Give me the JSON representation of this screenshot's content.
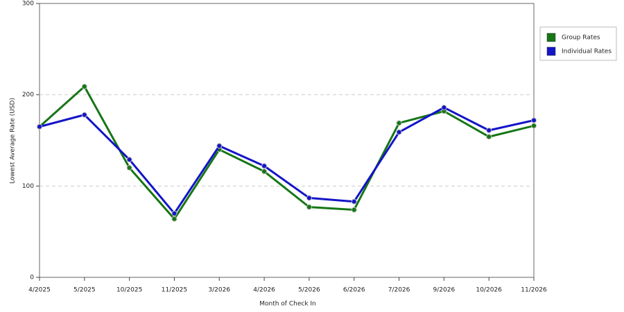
{
  "chart_data": {
    "type": "line",
    "x_label": "Month of Check In",
    "y_label": "Lowest Average Rate (USD)",
    "categories": [
      "4/2025",
      "5/2025",
      "10/2025",
      "11/2025",
      "3/2026",
      "4/2026",
      "5/2026",
      "6/2026",
      "7/2026",
      "9/2026",
      "10/2026",
      "11/2026"
    ],
    "series": [
      {
        "name": "Group Rates",
        "color": "#157615",
        "values": [
          165,
          209,
          120,
          64,
          140,
          116,
          77,
          74,
          169,
          182,
          154,
          166
        ]
      },
      {
        "name": "Individual Rates",
        "color": "#1414c8",
        "values": [
          165,
          178,
          129,
          70,
          144,
          122,
          87,
          83,
          159,
          186,
          161,
          172
        ]
      }
    ],
    "ylim": [
      0,
      300
    ],
    "yticks": [
      0,
      100,
      200,
      300
    ],
    "grid": true,
    "legend": "right"
  }
}
